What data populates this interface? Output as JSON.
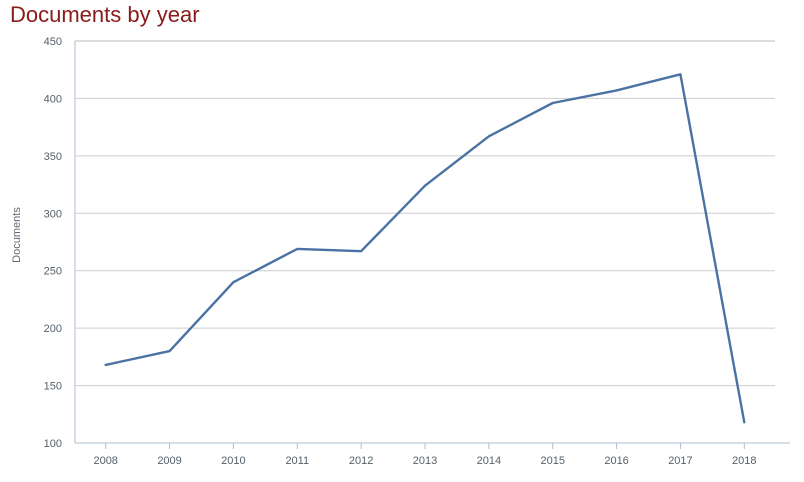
{
  "chart": {
    "title": "Documents by year"
  },
  "chart_data": {
    "type": "line",
    "title": "Documents by year",
    "xlabel": "",
    "ylabel": "Documents",
    "categories": [
      "2008",
      "2009",
      "2010",
      "2011",
      "2012",
      "2013",
      "2014",
      "2015",
      "2016",
      "2017",
      "2018"
    ],
    "values": [
      168,
      180,
      240,
      269,
      267,
      324,
      367,
      396,
      407,
      421,
      118
    ],
    "ylim": [
      100,
      450
    ],
    "y_ticks": [
      100,
      150,
      200,
      250,
      300,
      350,
      400,
      450
    ],
    "grid": "horizontal",
    "legend": "none",
    "colors": {
      "line": "#4a72a4",
      "title": "#8b1a1a",
      "axis": "#a9bfd4",
      "gridline": "#cdcdcd",
      "plot_border_top": "#b9bcbe",
      "tick_label": "#556069",
      "axis_title": "#5d6a76"
    }
  }
}
